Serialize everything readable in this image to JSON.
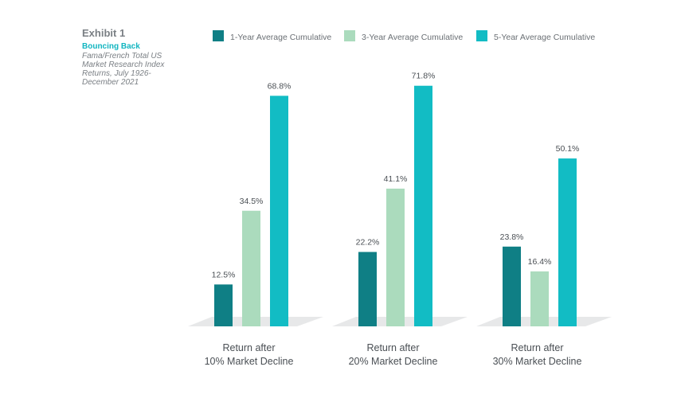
{
  "header": {
    "exhibit": "Exhibit 1",
    "subtitle": "Bouncing Back",
    "description": "Fama/French Total US\nMarket Research Index\nReturns, July 1926-\nDecember 2021"
  },
  "colors": {
    "series1": "#0f7f85",
    "series2": "#abdbbd",
    "series3": "#12bcc4",
    "floor": "#e7e8e9"
  },
  "chart_data": {
    "type": "bar",
    "categories": [
      [
        "Return after",
        "10% Market Decline"
      ],
      [
        "Return after",
        "20% Market Decline"
      ],
      [
        "Return after",
        "30% Market Decline"
      ]
    ],
    "series": [
      {
        "name": "1-Year Average Cumulative",
        "values": [
          12.5,
          22.2,
          23.8
        ],
        "labels": [
          "12.5%",
          "22.2%",
          "23.8%"
        ]
      },
      {
        "name": "3-Year Average Cumulative",
        "values": [
          34.5,
          41.1,
          16.4
        ],
        "labels": [
          "34.5%",
          "41.1%",
          "16.4%"
        ]
      },
      {
        "name": "5-Year Average Cumulative",
        "values": [
          68.8,
          71.8,
          50.1
        ],
        "labels": [
          "68.8%",
          "71.8%",
          "50.1%"
        ]
      }
    ],
    "ylim": [
      0,
      80
    ],
    "legend": "top",
    "grid": false
  }
}
